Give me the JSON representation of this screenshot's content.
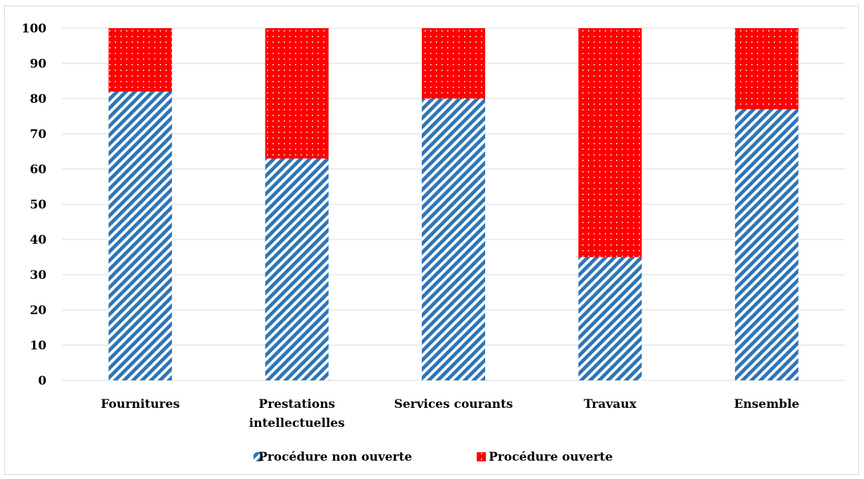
{
  "chart_data": {
    "type": "bar",
    "stacked": true,
    "categories": [
      "Fournitures",
      "Prestations intellectuelles",
      "Services courants",
      "Travaux",
      "Ensemble"
    ],
    "series": [
      {
        "name": "Procédure non ouverte",
        "values": [
          82,
          63,
          80,
          35,
          77
        ],
        "color": "#2e75b6",
        "pattern": "diagonal-stripes"
      },
      {
        "name": "Procédure ouverte",
        "values": [
          18,
          37,
          20,
          65,
          23
        ],
        "color": "#ff0000",
        "pattern": "dots"
      }
    ],
    "ylim": [
      0,
      100
    ],
    "yticks": [
      0,
      10,
      20,
      30,
      40,
      50,
      60,
      70,
      80,
      90,
      100
    ],
    "grid": true,
    "legend_position": "bottom",
    "title": "",
    "xlabel": "",
    "ylabel": ""
  }
}
